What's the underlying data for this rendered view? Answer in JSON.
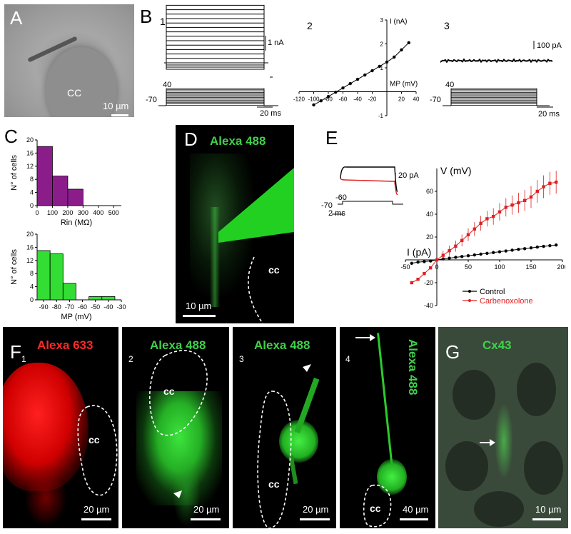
{
  "panels": {
    "A": {
      "label": "A",
      "cc": "CC",
      "scale": "10 µm"
    },
    "B": {
      "label": "B",
      "sub1": "1",
      "sub2": "2",
      "sub3": "3",
      "b1_current_scale": "1 nA",
      "b1_v_hold": "-70",
      "b1_v_top": "40",
      "b1_time_scale": "20 ms",
      "b3_current_scale": "100 pA",
      "b3_v_hold": "-70",
      "b3_v_top": "40",
      "b3_time_scale": "20 ms"
    },
    "C": {
      "label": "C"
    },
    "D": {
      "label": "D",
      "title": "Alexa 488",
      "cc": "cc",
      "scale": "10 µm"
    },
    "E": {
      "label": "E",
      "inset_scale": "20 pA",
      "inset_v_hold": "-70",
      "inset_v_step": "-60",
      "inset_time_scale": "2 ms"
    },
    "F": {
      "label": "F",
      "f1": {
        "num": "1",
        "title": "Alexa 633",
        "cc": "cc",
        "scale": "20 µm"
      },
      "f2": {
        "num": "2",
        "title": "Alexa 488",
        "cc": "cc",
        "scale": "20 µm"
      },
      "f3": {
        "num": "3",
        "title": "Alexa 488",
        "cc": "cc",
        "scale": "20 µm"
      },
      "f4": {
        "num": "4",
        "title": "Alexa 488",
        "cc": "cc",
        "scale": "40 µm"
      }
    },
    "G": {
      "label": "G",
      "title": "Cx43",
      "scale": "10 µm"
    }
  },
  "chart_data": [
    {
      "id": "B2",
      "type": "line",
      "xlabel": "MP (mV)",
      "ylabel": "I (nA)",
      "x_ticks": [
        "-120",
        "-100",
        "-80",
        "-60",
        "-40",
        "-20",
        "0",
        "20",
        "40"
      ],
      "y_ticks": [
        "-1",
        "1",
        "2",
        "3"
      ],
      "xlim": [
        -120,
        40
      ],
      "ylim": [
        -1,
        3
      ],
      "x": [
        -100,
        -90,
        -80,
        -70,
        -60,
        -50,
        -40,
        -30,
        -20,
        -10,
        0,
        10,
        20,
        30
      ],
      "y": [
        -0.55,
        -0.38,
        -0.2,
        -0.02,
        0.16,
        0.34,
        0.52,
        0.7,
        0.88,
        1.06,
        1.24,
        1.45,
        1.75,
        2.05
      ]
    },
    {
      "id": "C-Rin",
      "type": "bar",
      "xlabel": "Rin (MΩ)",
      "ylabel": "N° of cells",
      "x_ticks": [
        "0",
        "100",
        "200",
        "300",
        "400",
        "500"
      ],
      "y_ticks": [
        "0",
        "4",
        "8",
        "12",
        "16",
        "20"
      ],
      "ylim": [
        0,
        20
      ],
      "bins": [
        [
          0,
          100
        ],
        [
          100,
          200
        ],
        [
          200,
          300
        ]
      ],
      "values": [
        18,
        9,
        5
      ],
      "color": "#8b1d8b"
    },
    {
      "id": "C-MP",
      "type": "bar",
      "xlabel": "MP (mV)",
      "ylabel": "N° of cells",
      "x_ticks": [
        "-90",
        "-80",
        "-70",
        "-60",
        "-50",
        "-40",
        "-30"
      ],
      "y_ticks": [
        "0",
        "4",
        "8",
        "12",
        "16",
        "20"
      ],
      "ylim": [
        0,
        20
      ],
      "bins": [
        [
          -95,
          -85
        ],
        [
          -85,
          -75
        ],
        [
          -75,
          -65
        ],
        [
          -55,
          -45
        ],
        [
          -45,
          -35
        ]
      ],
      "values": [
        15,
        14,
        5,
        1,
        1
      ],
      "color": "#33dd33"
    },
    {
      "id": "E",
      "type": "line",
      "xlabel": "I (pA)",
      "ylabel": "V (mV)",
      "x_ticks": [
        "-50",
        "0",
        "50",
        "100",
        "150",
        "200"
      ],
      "y_ticks": [
        "-40",
        "-20",
        "0",
        "20",
        "40",
        "60"
      ],
      "xlim": [
        -50,
        200
      ],
      "ylim": [
        -40,
        80
      ],
      "legend": [
        "Control",
        "Carbenoxolone"
      ],
      "legend_loc": "bottom",
      "series": [
        {
          "name": "Control",
          "color": "#000000",
          "x": [
            -40,
            -30,
            -20,
            -10,
            0,
            10,
            20,
            30,
            40,
            50,
            60,
            70,
            80,
            90,
            100,
            110,
            120,
            130,
            140,
            150,
            160,
            170,
            180,
            190
          ],
          "y": [
            -3,
            -2,
            -1.5,
            -1,
            0,
            0.8,
            1.5,
            2.2,
            2.9,
            3.6,
            4.3,
            5,
            5.7,
            6.4,
            7.1,
            7.8,
            8.5,
            9.2,
            9.8,
            10.5,
            11.2,
            11.8,
            12.4,
            13
          ]
        },
        {
          "name": "Carbenoxolone",
          "color": "#e02020",
          "x": [
            -40,
            -30,
            -20,
            -10,
            0,
            10,
            20,
            30,
            40,
            50,
            60,
            70,
            80,
            90,
            100,
            110,
            120,
            130,
            140,
            150,
            160,
            170,
            180,
            190
          ],
          "y": [
            -20,
            -17,
            -12,
            -7,
            0,
            4,
            8,
            12,
            17,
            22,
            27,
            32,
            36,
            38,
            42,
            46,
            48,
            50,
            52,
            55,
            60,
            64,
            67,
            68
          ]
        }
      ]
    }
  ]
}
